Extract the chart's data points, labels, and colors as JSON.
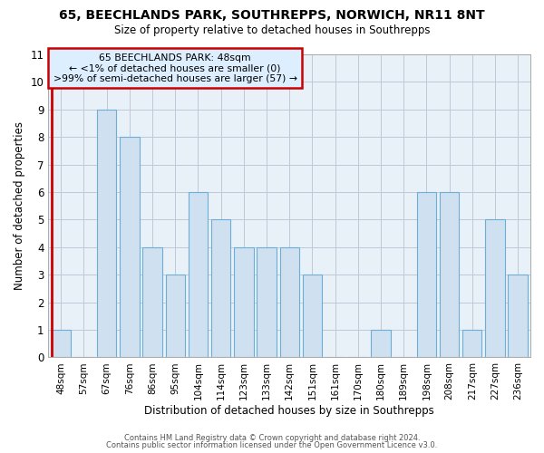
{
  "title": "65, BEECHLANDS PARK, SOUTHREPPS, NORWICH, NR11 8NT",
  "subtitle": "Size of property relative to detached houses in Southrepps",
  "xlabel": "Distribution of detached houses by size in Southrepps",
  "ylabel": "Number of detached properties",
  "bins": [
    "48sqm",
    "57sqm",
    "67sqm",
    "76sqm",
    "86sqm",
    "95sqm",
    "104sqm",
    "114sqm",
    "123sqm",
    "133sqm",
    "142sqm",
    "151sqm",
    "161sqm",
    "170sqm",
    "180sqm",
    "189sqm",
    "198sqm",
    "208sqm",
    "217sqm",
    "227sqm",
    "236sqm"
  ],
  "values": [
    1,
    0,
    9,
    8,
    4,
    3,
    6,
    5,
    4,
    4,
    4,
    3,
    0,
    0,
    1,
    0,
    6,
    6,
    1,
    5,
    3
  ],
  "bar_color": "#cfe0f0",
  "bar_edge_color": "#6baed6",
  "highlight_line_color": "#cc0000",
  "annotation_line1": "65 BEECHLANDS PARK: 48sqm",
  "annotation_line2": "← <1% of detached houses are smaller (0)",
  "annotation_line3": ">99% of semi-detached houses are larger (57) →",
  "annotation_box_facecolor": "#ddeeff",
  "annotation_box_edgecolor": "#cc0000",
  "ylim": [
    0,
    11
  ],
  "yticks": [
    0,
    1,
    2,
    3,
    4,
    5,
    6,
    7,
    8,
    9,
    10,
    11
  ],
  "plot_bg_color": "#e8f0f8",
  "footer1": "Contains HM Land Registry data © Crown copyright and database right 2024.",
  "footer2": "Contains public sector information licensed under the Open Government Licence v3.0.",
  "background_color": "#ffffff",
  "grid_color": "#c0c8d8"
}
